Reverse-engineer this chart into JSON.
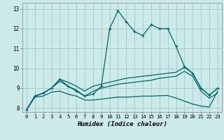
{
  "xlabel": "Humidex (Indice chaleur)",
  "bg_color": "#cceaea",
  "grid_color": "#aacccc",
  "line_color": "#006666",
  "xlim": [
    -0.5,
    23.5
  ],
  "ylim": [
    7.8,
    13.3
  ],
  "xticks": [
    0,
    1,
    2,
    3,
    4,
    5,
    6,
    7,
    8,
    9,
    10,
    11,
    12,
    13,
    14,
    15,
    16,
    17,
    18,
    19,
    20,
    21,
    22,
    23
  ],
  "yticks": [
    8,
    9,
    10,
    11,
    12,
    13
  ],
  "curve_main": [
    7.9,
    8.6,
    8.75,
    9.0,
    9.45,
    9.1,
    8.85,
    8.6,
    8.7,
    9.1,
    12.0,
    12.9,
    12.35,
    11.85,
    11.65,
    12.2,
    12.0,
    12.0,
    11.1,
    10.1,
    9.75,
    9.0,
    8.65,
    9.0
  ],
  "curve_upper": [
    7.9,
    8.6,
    8.75,
    9.0,
    9.45,
    9.3,
    9.1,
    8.85,
    9.1,
    9.2,
    9.3,
    9.4,
    9.5,
    9.55,
    9.6,
    9.65,
    9.7,
    9.75,
    9.8,
    10.05,
    9.75,
    9.0,
    8.65,
    9.0
  ],
  "curve_mid": [
    7.9,
    8.6,
    8.75,
    9.0,
    9.35,
    9.1,
    8.9,
    8.6,
    8.85,
    9.0,
    9.1,
    9.2,
    9.25,
    9.3,
    9.35,
    9.4,
    9.5,
    9.55,
    9.6,
    9.85,
    9.6,
    8.85,
    8.5,
    8.75
  ],
  "curve_lower": [
    7.9,
    8.55,
    8.6,
    8.8,
    8.85,
    8.7,
    8.6,
    8.4,
    8.4,
    8.45,
    8.5,
    8.55,
    8.55,
    8.57,
    8.6,
    8.6,
    8.62,
    8.63,
    8.5,
    8.35,
    8.2,
    8.1,
    8.05,
    8.85
  ]
}
